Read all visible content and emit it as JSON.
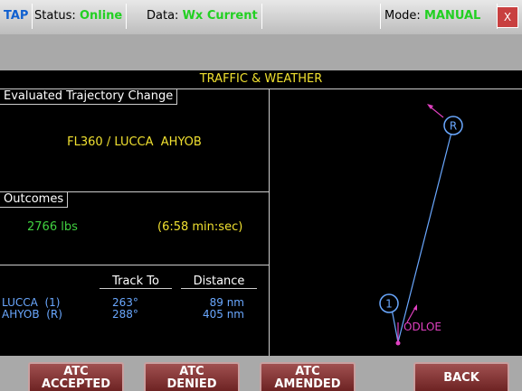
{
  "status_bar": {
    "app": "TAP",
    "status_label": "Status:",
    "status": "Online",
    "data_label": "Data:",
    "data": "Wx Current",
    "mode_label": "Mode:",
    "mode": "MANUAL",
    "close": "X"
  },
  "panel": {
    "title": "TRAFFIC & WEATHER",
    "trajectory": {
      "label": "Evaluated Trajectory Change",
      "value": "FL360 / LUCCA  AHYOB"
    },
    "outcomes": {
      "label": "Outcomes",
      "fuel": "2766 lbs",
      "time": "(6:58 min:sec)"
    },
    "table": {
      "headers": [
        "Track To",
        "Distance"
      ],
      "rows": [
        [
          "LUCCA  (1)",
          "263°",
          "89 nm"
        ],
        [
          "AHYOB  (R)",
          "288°",
          "405 nm"
        ]
      ]
    }
  },
  "map": {
    "waypoints": [
      "R",
      "1"
    ],
    "label": "ODLOE"
  },
  "buttons": [
    [
      "ATC",
      "ACCEPTED"
    ],
    [
      "ATC",
      "DENIED"
    ],
    [
      "ATC",
      "AMENDED"
    ],
    [
      "BACK"
    ]
  ]
}
